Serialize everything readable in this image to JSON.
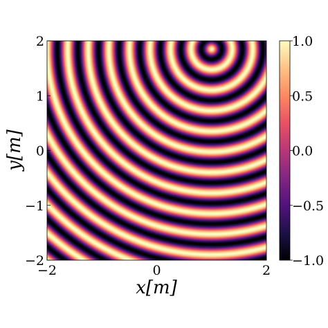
{
  "chart_data": {
    "type": "heatmap",
    "title": "",
    "xlabel": "x[m]",
    "ylabel": "y[m]",
    "xlim": [
      -2,
      2
    ],
    "ylim": [
      -2,
      2
    ],
    "x_ticks": [
      -2,
      0,
      2
    ],
    "y_ticks": [
      -2,
      -1,
      0,
      1,
      2
    ],
    "x_tick_labels": [
      "−2",
      "0",
      "2"
    ],
    "y_tick_labels": [
      "−2",
      "−1",
      "0",
      "1",
      "2"
    ],
    "field": {
      "description_of_values": "cos(k*r) wave field, r = distance from source",
      "source": {
        "x": 1.0,
        "y": 1.85
      },
      "wavelength_m": 0.375
    },
    "colormap": {
      "name": "magma",
      "range": [
        -1.0,
        1.0
      ],
      "ticks": [
        -1.0,
        -0.5,
        0.0,
        0.5,
        1.0
      ],
      "tick_labels": [
        "−1.0",
        "−0.5",
        "0.0",
        "0.5",
        "1.0"
      ],
      "stops": [
        "#000004",
        "#1d1147",
        "#51127c",
        "#822681",
        "#b73779",
        "#e75263",
        "#fc8961",
        "#fec287",
        "#fcfdbf"
      ]
    },
    "grid": false,
    "legend": "none"
  }
}
